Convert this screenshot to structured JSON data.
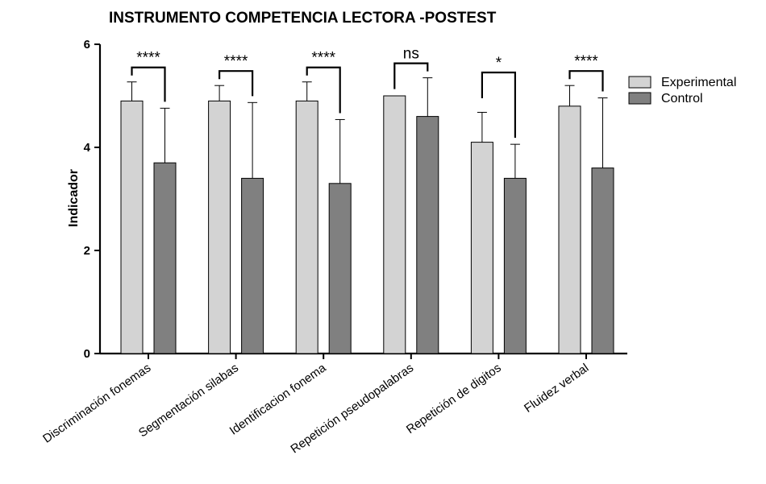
{
  "chart_data": {
    "type": "bar",
    "title": "INSTRUMENTO COMPETENCIA LECTORA -POSTEST",
    "ylabel": "Indicador",
    "xlabel": "",
    "ylim": [
      0,
      6
    ],
    "yticks": [
      0,
      2,
      4,
      6
    ],
    "grid": false,
    "legend_position": "top-right",
    "categories": [
      "Discriminación fonemas",
      "Segmentación silabas",
      "Identificacion fonema",
      "Repetición pseudopalabras",
      "Repetición de digitos",
      "Fluidez verbal"
    ],
    "series": [
      {
        "name": "Experimental",
        "color": "#d3d3d3",
        "values": [
          4.9,
          4.9,
          4.9,
          5.0,
          4.1,
          4.8
        ],
        "error": [
          0.37,
          0.3,
          0.37,
          0.0,
          0.58,
          0.4
        ]
      },
      {
        "name": "Control",
        "color": "#808080",
        "values": [
          3.7,
          3.4,
          3.3,
          4.6,
          3.4,
          3.6
        ],
        "error": [
          1.06,
          1.47,
          1.24,
          0.75,
          0.66,
          1.36
        ]
      }
    ],
    "significance": [
      "****",
      "****",
      "****",
      "ns",
      "*",
      "****"
    ]
  }
}
